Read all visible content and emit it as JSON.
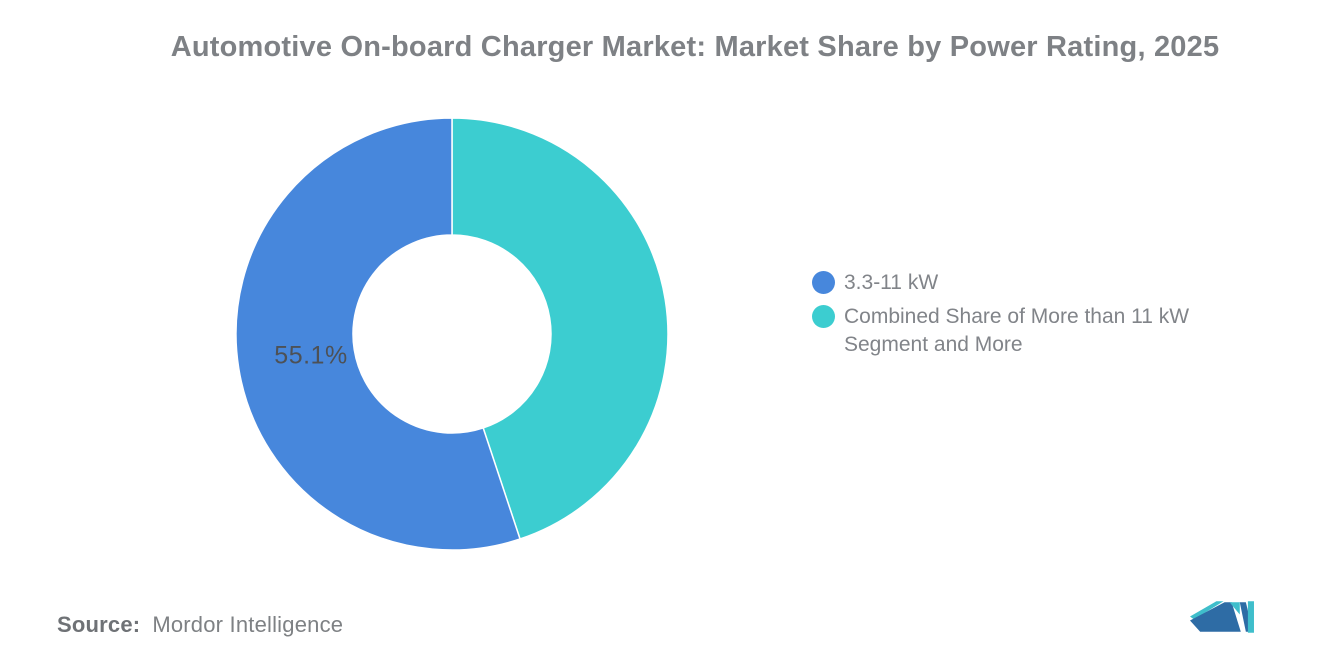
{
  "title": "Automotive On-board Charger Market: Market Share by Power Rating, 2025",
  "chart_data": {
    "type": "pie",
    "subtype": "donut",
    "title": "Automotive On-board Charger Market: Market Share by Power Rating, 2025",
    "units": "%",
    "inner_radius_ratio": 0.46,
    "legend_position": "right",
    "series": [
      {
        "name": "3.3-11 kW",
        "value": 55.1,
        "color": "#4787DC",
        "data_label": "55.1%"
      },
      {
        "name": "Combined Share of More than 11 kW Segment and More",
        "value": 44.9,
        "color": "#3CCDD0",
        "data_label": ""
      }
    ]
  },
  "legend": {
    "items": [
      {
        "label": "3.3-11 kW",
        "color": "#4787DC"
      },
      {
        "label": "Combined Share of More than 11 kW Segment and More",
        "color": "#3CCDD0"
      }
    ]
  },
  "source": {
    "label": "Source:",
    "value": "Mordor Intelligence"
  },
  "logo": {
    "name": "Mordor Intelligence logo",
    "colors": {
      "navy": "#2E6CA5",
      "teal": "#3FBECB"
    }
  }
}
